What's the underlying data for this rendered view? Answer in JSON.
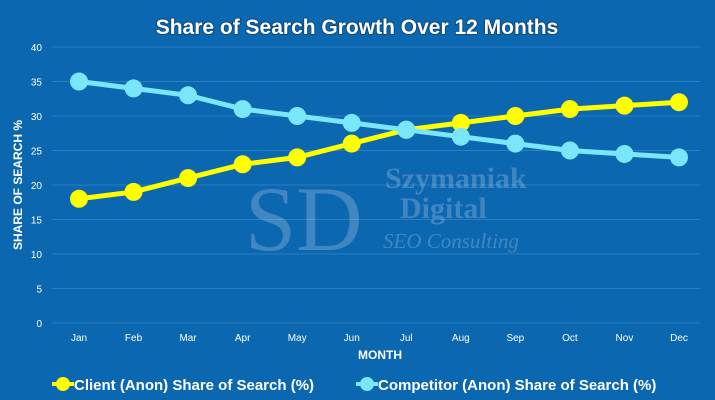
{
  "chart_data": {
    "type": "line",
    "title": "Share of Search Growth Over 12 Months",
    "xlabel": "MONTH",
    "ylabel": "SHARE OF SEARCH %",
    "categories": [
      "Jan",
      "Feb",
      "Mar",
      "Apr",
      "May",
      "Jun",
      "Jul",
      "Aug",
      "Sep",
      "Oct",
      "Nov",
      "Dec"
    ],
    "ylim": [
      0,
      40
    ],
    "yticks": [
      0,
      5,
      10,
      15,
      20,
      25,
      30,
      35,
      40
    ],
    "grid": true,
    "legend": "bottom",
    "series": [
      {
        "name": "Client (Anon) Share of Search (%)",
        "color": "#ffff00",
        "values": [
          18,
          19,
          21,
          23,
          24,
          26,
          28,
          29,
          30,
          31,
          31.5,
          32
        ]
      },
      {
        "name": "Competitor (Anon) Share of Search (%)",
        "color": "#7ae6fa",
        "values": [
          35,
          34,
          33,
          31,
          30,
          29,
          28,
          27,
          26,
          25,
          24.5,
          24
        ]
      }
    ]
  },
  "watermark": {
    "monogram": "SD",
    "name1": "Szymaniak",
    "name2": "Digital",
    "tagline": "SEO Consulting"
  },
  "colors": {
    "background": "#0b67b0",
    "grid": "#2a7fc2"
  }
}
